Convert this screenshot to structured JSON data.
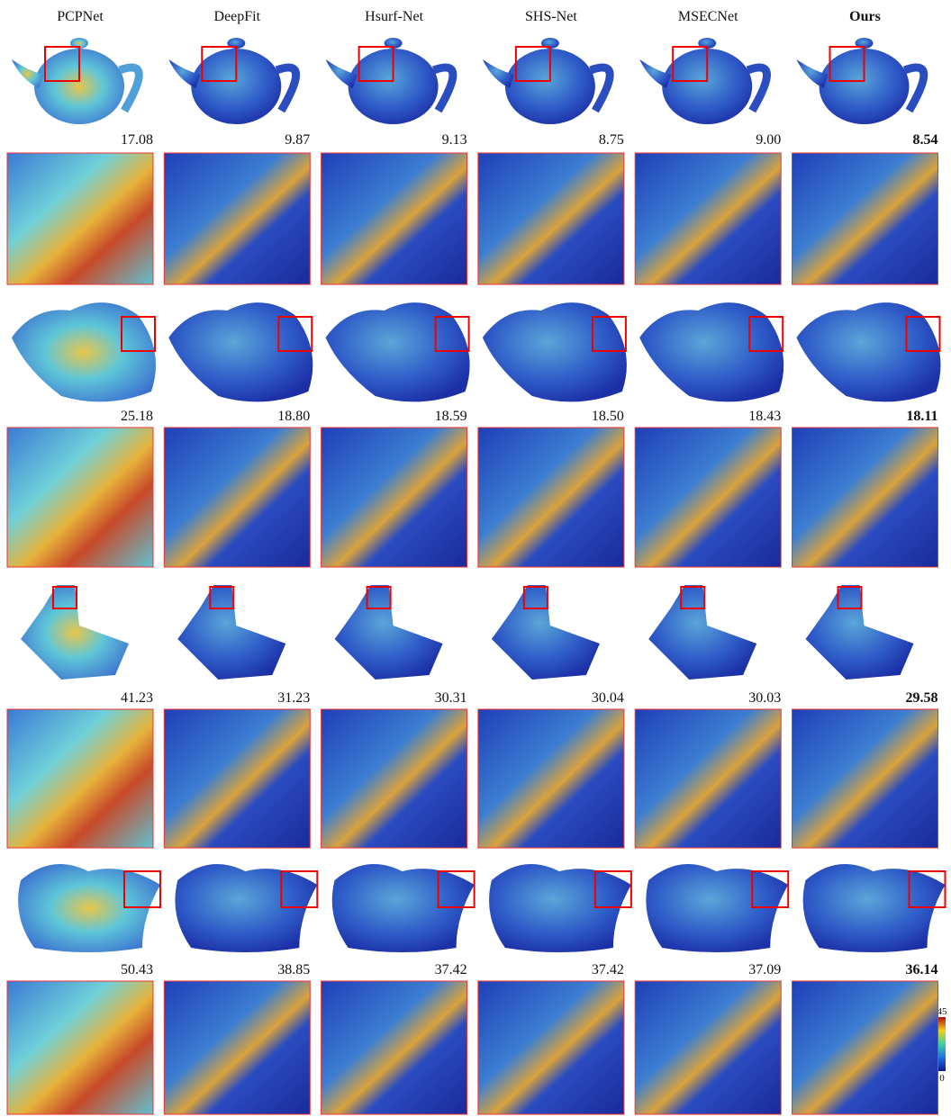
{
  "columns": [
    "PCPNet",
    "DeepFit",
    "Hsurf-Net",
    "SHS-Net",
    "MSECNet",
    "Ours"
  ],
  "rows": [
    {
      "values": [
        "17.08",
        "9.87",
        "9.13",
        "8.75",
        "9.00",
        "8.54"
      ]
    },
    {
      "values": [
        "25.18",
        "18.80",
        "18.59",
        "18.50",
        "18.43",
        "18.11"
      ]
    },
    {
      "values": [
        "41.23",
        "31.23",
        "30.31",
        "30.04",
        "30.03",
        "29.58"
      ]
    },
    {
      "values": [
        "50.43",
        "38.85",
        "37.42",
        "37.42",
        "37.09",
        "36.14"
      ]
    }
  ],
  "colorbar": {
    "max": "45",
    "min": "0"
  }
}
